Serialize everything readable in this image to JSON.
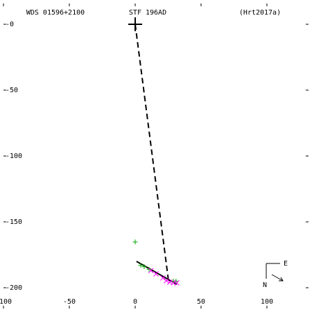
{
  "chart_data": {
    "type": "scatter",
    "title": "STF 196AD",
    "left_title": "WDS 01596+2100",
    "right_title": "(Hrt2017a)",
    "compass": {
      "east": "E",
      "north": "N"
    },
    "xlim": [
      -100,
      131.6
    ],
    "ylim": [
      -215.8,
      15.8
    ],
    "xticks": [
      -100,
      -50,
      0,
      50,
      100
    ],
    "yticks": [
      {
        "value": 0,
        "label": "-0"
      },
      -50,
      -100,
      -150,
      -200
    ],
    "series": [
      {
        "marker": "big-plus",
        "color": "#000000",
        "x": [
          0
        ],
        "y": [
          0
        ]
      },
      {
        "marker": "dashed-line",
        "color": "#000000",
        "x": [
          0,
          25.3
        ],
        "y": [
          0,
          -194.7
        ]
      },
      {
        "marker": "line",
        "color": "#000000",
        "x": [
          1,
          31.6
        ],
        "y": [
          -180,
          -197.4
        ]
      },
      {
        "marker": "plus",
        "color": "#00aa00",
        "x": [
          0,
          4.2,
          6.8,
          10.5,
          29,
          31
        ],
        "y": [
          -165.3,
          -183,
          -184,
          -186,
          -195,
          -195
        ]
      },
      {
        "marker": "cross",
        "color": "#ff00ff",
        "x": [
          12,
          15.8,
          21,
          23.7,
          26.3,
          29,
          31.6
        ],
        "y": [
          -187,
          -189.5,
          -192.6,
          -194.7,
          -195.8,
          -196.3,
          -196.3
        ]
      }
    ]
  }
}
